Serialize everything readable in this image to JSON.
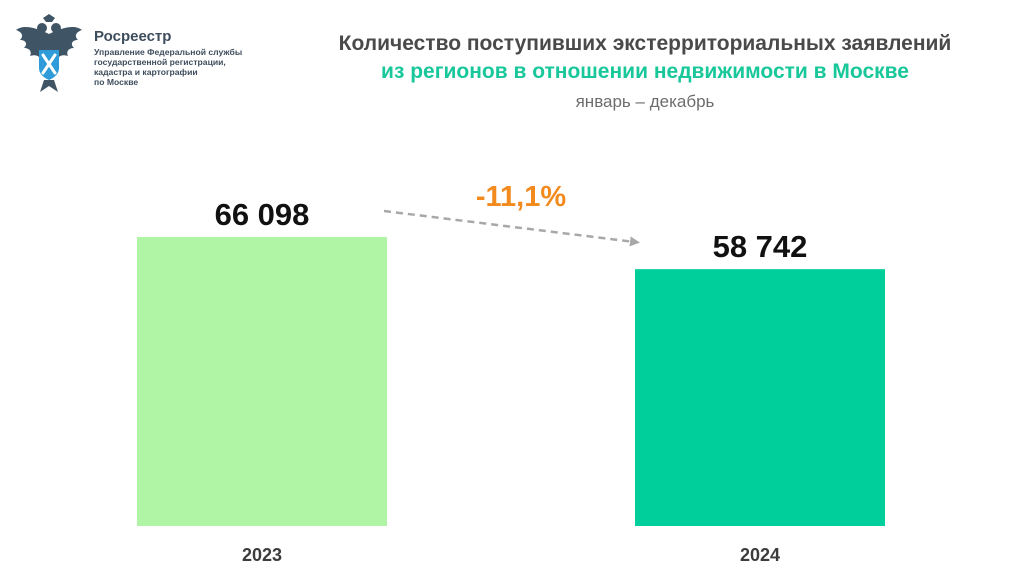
{
  "logo": {
    "name": "Росреестр",
    "subtitle": "Управление Федеральной службы\nгосударственной регистрации,\nкадастра и картографии\nпо Москве"
  },
  "title": {
    "line1": "Количество поступивших экстерриториальных заявлений",
    "line2": "из регионов в отношении недвижимости в Москве",
    "period": "январь – декабрь"
  },
  "colors": {
    "bar_2023": "#b0f4a6",
    "bar_2024": "#00cf9b",
    "change": "#f28a1e",
    "title_accent": "#18c79a",
    "arrow": "#a8a8a8"
  },
  "chart_data": {
    "type": "bar",
    "categories": [
      "2023",
      "2024"
    ],
    "values": [
      66098,
      58742
    ],
    "value_labels": [
      "66 098",
      "58 742"
    ],
    "change_label": "-11,1%",
    "title": "Количество поступивших экстерриториальных заявлений из регионов в отношении недвижимости в Москве",
    "subtitle": "январь – декабрь",
    "xlabel": "",
    "ylabel": "",
    "ylim": [
      0,
      66098
    ],
    "grid": false,
    "legend": "none"
  }
}
